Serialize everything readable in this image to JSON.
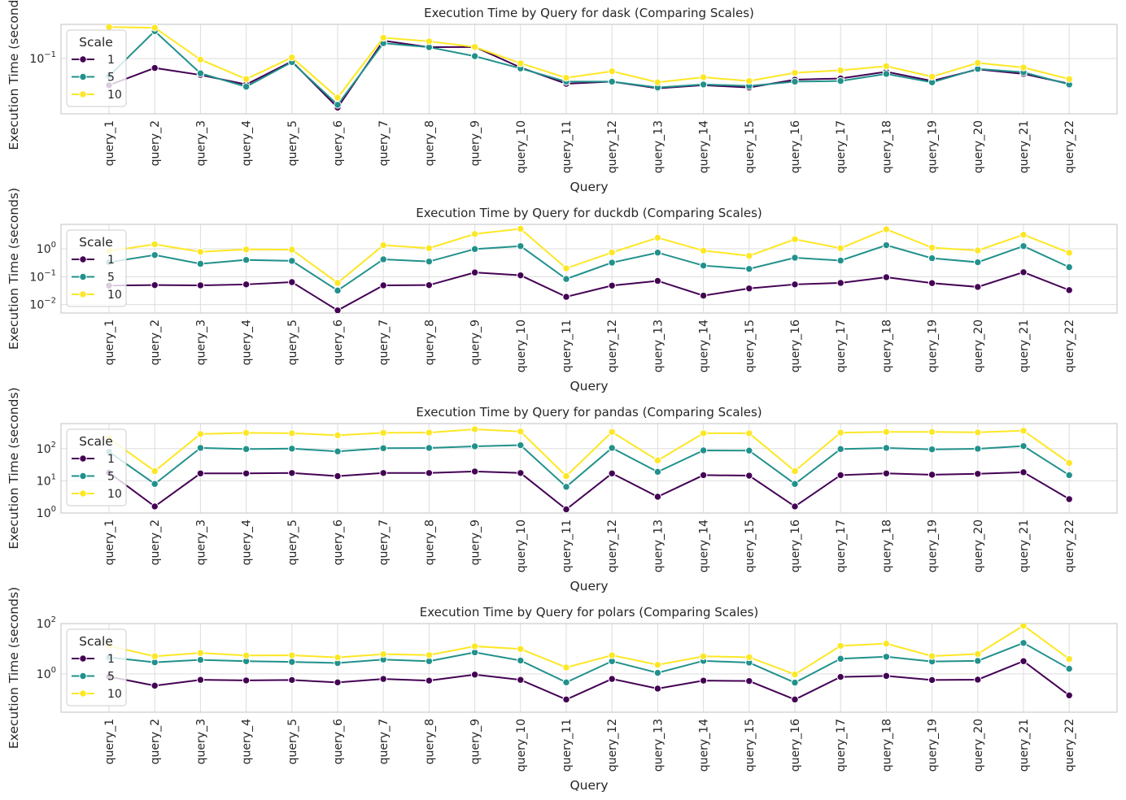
{
  "chart_data": [
    {
      "type": "line",
      "title": "Execution Time by Query for dask (Comparing Scales)",
      "xlabel": "Query",
      "ylabel": "Execution Time (seconds)",
      "yscale": "log",
      "ylim": [
        0.02,
        0.27
      ],
      "yticks": [
        {
          "base": "10",
          "exp": "−1",
          "value": 0.1
        }
      ],
      "grid": true,
      "legend": {
        "title": "Scale",
        "position": "upper-left",
        "entries": [
          "1",
          "5",
          "10"
        ]
      },
      "categories": [
        "query_1",
        "query_2",
        "query_3",
        "query_4",
        "query_5",
        "query_6",
        "query_7",
        "query_8",
        "query_9",
        "query_10",
        "query_11",
        "query_12",
        "query_13",
        "query_14",
        "query_15",
        "query_16",
        "query_17",
        "query_18",
        "query_19",
        "query_20",
        "query_21",
        "query_22"
      ],
      "series": [
        {
          "name": "1",
          "color": "#440154",
          "values": [
            0.046,
            0.076,
            0.062,
            0.047,
            0.092,
            0.024,
            0.168,
            0.139,
            0.14,
            0.077,
            0.048,
            0.051,
            0.042,
            0.046,
            0.043,
            0.054,
            0.056,
            0.068,
            0.052,
            0.073,
            0.064,
            0.048
          ]
        },
        {
          "name": "5",
          "color": "#21918c",
          "values": [
            0.06,
            0.222,
            0.065,
            0.044,
            0.09,
            0.026,
            0.156,
            0.139,
            0.107,
            0.075,
            0.051,
            0.051,
            0.043,
            0.047,
            0.045,
            0.051,
            0.052,
            0.064,
            0.05,
            0.074,
            0.067,
            0.047
          ]
        },
        {
          "name": "10",
          "color": "#fde725",
          "values": [
            0.25,
            0.245,
            0.097,
            0.055,
            0.103,
            0.032,
            0.183,
            0.165,
            0.14,
            0.087,
            0.057,
            0.069,
            0.05,
            0.058,
            0.052,
            0.066,
            0.071,
            0.08,
            0.059,
            0.088,
            0.077,
            0.055
          ]
        }
      ]
    },
    {
      "type": "line",
      "title": "Execution Time by Query for duckdb (Comparing Scales)",
      "xlabel": "Query",
      "ylabel": "Execution Time (seconds)",
      "yscale": "log",
      "ylim": [
        0.005,
        7.5
      ],
      "yticks": [
        {
          "base": "10",
          "exp": "0",
          "value": 1
        },
        {
          "base": "10",
          "exp": "−1",
          "value": 0.1
        },
        {
          "base": "10",
          "exp": "−2",
          "value": 0.01
        }
      ],
      "grid": true,
      "legend": {
        "title": "Scale",
        "position": "upper-left",
        "entries": [
          "1",
          "5",
          "10"
        ]
      },
      "categories": [
        "query_1",
        "query_2",
        "query_3",
        "query_4",
        "query_5",
        "query_6",
        "query_7",
        "query_8",
        "query_9",
        "query_10",
        "query_11",
        "query_12",
        "query_13",
        "query_14",
        "query_15",
        "query_16",
        "query_17",
        "query_18",
        "query_19",
        "query_20",
        "query_21",
        "query_22"
      ],
      "series": [
        {
          "name": "1",
          "color": "#440154",
          "values": [
            0.048,
            0.05,
            0.049,
            0.053,
            0.064,
            0.0062,
            0.049,
            0.05,
            0.142,
            0.112,
            0.019,
            0.048,
            0.071,
            0.021,
            0.038,
            0.053,
            0.06,
            0.096,
            0.059,
            0.043,
            0.145,
            0.033
          ]
        },
        {
          "name": "5",
          "color": "#21918c",
          "values": [
            0.33,
            0.6,
            0.29,
            0.4,
            0.37,
            0.032,
            0.42,
            0.35,
            0.98,
            1.25,
            0.083,
            0.32,
            0.73,
            0.25,
            0.19,
            0.48,
            0.38,
            1.35,
            0.46,
            0.33,
            1.25,
            0.22
          ]
        },
        {
          "name": "10",
          "color": "#fde725",
          "values": [
            0.83,
            1.45,
            0.78,
            0.95,
            0.93,
            0.06,
            1.35,
            1.05,
            3.4,
            5.2,
            0.2,
            0.74,
            2.5,
            0.86,
            0.56,
            2.2,
            1.05,
            5.0,
            1.1,
            0.87,
            3.2,
            0.72
          ]
        }
      ]
    },
    {
      "type": "line",
      "title": "Execution Time by Query for pandas (Comparing Scales)",
      "xlabel": "Query",
      "ylabel": "Execution Time (seconds)",
      "yscale": "log",
      "ylim": [
        1,
        600
      ],
      "yticks": [
        {
          "base": "10",
          "exp": "2",
          "value": 100
        },
        {
          "base": "10",
          "exp": "1",
          "value": 10
        },
        {
          "base": "10",
          "exp": "0",
          "value": 1
        }
      ],
      "grid": true,
      "legend": {
        "title": "Scale",
        "position": "upper-left",
        "entries": [
          "1",
          "5",
          "10"
        ]
      },
      "categories": [
        "query_1",
        "query_2",
        "query_3",
        "query_4",
        "query_5",
        "query_6",
        "query_7",
        "query_8",
        "query_9",
        "query_10",
        "query_11",
        "query_12",
        "query_13",
        "query_14",
        "query_15",
        "query_16",
        "query_17",
        "query_18",
        "query_19",
        "query_20",
        "query_21",
        "query_22"
      ],
      "series": [
        {
          "name": "1",
          "color": "#440154",
          "values": [
            18,
            1.6,
            17,
            17,
            17.5,
            14,
            17.5,
            17.5,
            19.5,
            17.5,
            1.3,
            17,
            3.2,
            15,
            14.5,
            1.6,
            15,
            17,
            15.5,
            16.5,
            18.5,
            2.7
          ]
        },
        {
          "name": "5",
          "color": "#21918c",
          "values": [
            80,
            8,
            105,
            97,
            100,
            82,
            103,
            105,
            118,
            128,
            6.5,
            105,
            19,
            88,
            87,
            8,
            97,
            105,
            95,
            99,
            120,
            15
          ]
        },
        {
          "name": "10",
          "color": "#fde725",
          "values": [
            210,
            20,
            285,
            310,
            300,
            260,
            310,
            315,
            400,
            340,
            14,
            330,
            43,
            300,
            300,
            20,
            315,
            330,
            330,
            320,
            360,
            36
          ]
        }
      ]
    },
    {
      "type": "line",
      "title": "Execution Time by Query for polars (Comparing Scales)",
      "xlabel": "Query",
      "ylabel": "Execution Time (seconds)",
      "yscale": "log",
      "ylim": [
        0.03,
        100
      ],
      "yticks": [
        {
          "base": "10",
          "exp": "2",
          "value": 100
        },
        {
          "base": "10",
          "exp": "0",
          "value": 1
        }
      ],
      "grid": true,
      "legend": {
        "title": "Scale",
        "position": "upper-left",
        "entries": [
          "1",
          "5",
          "10"
        ]
      },
      "categories": [
        "query_1",
        "query_2",
        "query_3",
        "query_4",
        "query_5",
        "query_6",
        "query_7",
        "query_8",
        "query_9",
        "query_10",
        "query_11",
        "query_12",
        "query_13",
        "query_14",
        "query_15",
        "query_16",
        "query_17",
        "query_18",
        "query_19",
        "query_20",
        "query_21",
        "query_22"
      ],
      "series": [
        {
          "name": "1",
          "color": "#440154",
          "values": [
            0.78,
            0.34,
            0.58,
            0.55,
            0.57,
            0.46,
            0.63,
            0.54,
            0.94,
            0.58,
            0.096,
            0.63,
            0.26,
            0.54,
            0.52,
            0.096,
            0.76,
            0.83,
            0.57,
            0.59,
            3.2,
            0.14
          ]
        },
        {
          "name": "5",
          "color": "#21918c",
          "values": [
            4.5,
            2.9,
            3.6,
            3.2,
            3.0,
            2.7,
            3.7,
            3.2,
            7.2,
            3.4,
            0.46,
            3.2,
            1.1,
            3.3,
            2.8,
            0.45,
            4.0,
            4.8,
            3.1,
            3.3,
            17,
            1.6
          ]
        },
        {
          "name": "10",
          "color": "#fde725",
          "values": [
            13,
            5.0,
            6.8,
            5.4,
            5.5,
            4.5,
            6.1,
            5.6,
            12.5,
            9.8,
            1.8,
            5.5,
            2.3,
            5.0,
            4.6,
            0.95,
            13,
            16,
            5.1,
            6.2,
            83,
            3.9
          ]
        }
      ]
    }
  ]
}
